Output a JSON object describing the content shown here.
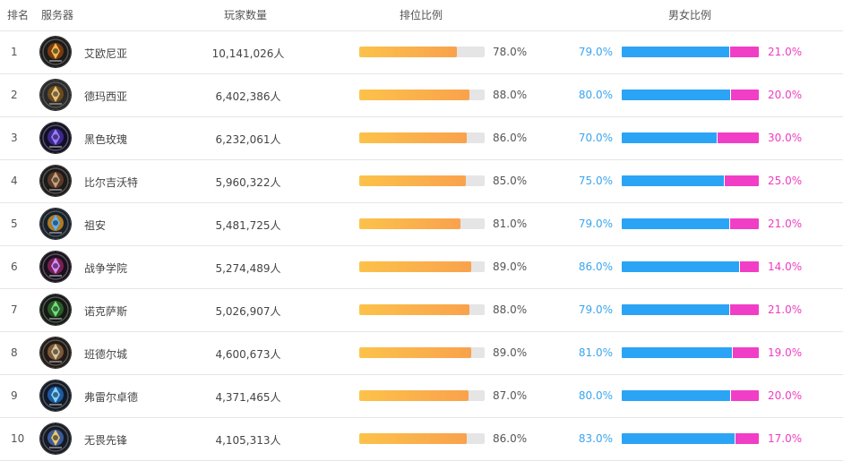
{
  "headers": {
    "rank": "排名",
    "server": "服务器",
    "players": "玩家数量",
    "ratio": "排位比例",
    "gender": "男女比例"
  },
  "colors": {
    "male": "#2ba4f5",
    "female": "#f13ec6",
    "bar_start": "#fcc24a",
    "bar_end": "#f9a24d",
    "track": "#e5e5e5"
  },
  "rows": [
    {
      "rank": "1",
      "server": "艾欧尼亚",
      "players": "10,141,026人",
      "ratio": 78,
      "ratio_label": "78.0%",
      "male": 79,
      "male_label": "79.0%",
      "female_label": "21.0%",
      "icon": "ionia-emblem-icon"
    },
    {
      "rank": "2",
      "server": "德玛西亚",
      "players": "6,402,386人",
      "ratio": 88,
      "ratio_label": "88.0%",
      "male": 80,
      "male_label": "80.0%",
      "female_label": "20.0%",
      "icon": "demacia-emblem-icon"
    },
    {
      "rank": "3",
      "server": "黑色玫瑰",
      "players": "6,232,061人",
      "ratio": 86,
      "ratio_label": "86.0%",
      "male": 70,
      "male_label": "70.0%",
      "female_label": "30.0%",
      "icon": "black-rose-emblem-icon"
    },
    {
      "rank": "4",
      "server": "比尔吉沃特",
      "players": "5,960,322人",
      "ratio": 85,
      "ratio_label": "85.0%",
      "male": 75,
      "male_label": "75.0%",
      "female_label": "25.0%",
      "icon": "bilgewater-emblem-icon"
    },
    {
      "rank": "5",
      "server": "祖安",
      "players": "5,481,725人",
      "ratio": 81,
      "ratio_label": "81.0%",
      "male": 79,
      "male_label": "79.0%",
      "female_label": "21.0%",
      "icon": "zaun-emblem-icon"
    },
    {
      "rank": "6",
      "server": "战争学院",
      "players": "5,274,489人",
      "ratio": 89,
      "ratio_label": "89.0%",
      "male": 86,
      "male_label": "86.0%",
      "female_label": "14.0%",
      "icon": "war-academy-emblem-icon"
    },
    {
      "rank": "7",
      "server": "诺克萨斯",
      "players": "5,026,907人",
      "ratio": 88,
      "ratio_label": "88.0%",
      "male": 79,
      "male_label": "79.0%",
      "female_label": "21.0%",
      "icon": "noxus-emblem-icon"
    },
    {
      "rank": "8",
      "server": "班德尔城",
      "players": "4,600,673人",
      "ratio": 89,
      "ratio_label": "89.0%",
      "male": 81,
      "male_label": "81.0%",
      "female_label": "19.0%",
      "icon": "bandle-city-emblem-icon"
    },
    {
      "rank": "9",
      "server": "弗雷尔卓德",
      "players": "4,371,465人",
      "ratio": 87,
      "ratio_label": "87.0%",
      "male": 80,
      "male_label": "80.0%",
      "female_label": "20.0%",
      "icon": "freljord-emblem-icon"
    },
    {
      "rank": "10",
      "server": "无畏先锋",
      "players": "4,105,313人",
      "ratio": 86,
      "ratio_label": "86.0%",
      "male": 83,
      "male_label": "83.0%",
      "female_label": "17.0%",
      "icon": "vanguard-emblem-icon"
    }
  ]
}
